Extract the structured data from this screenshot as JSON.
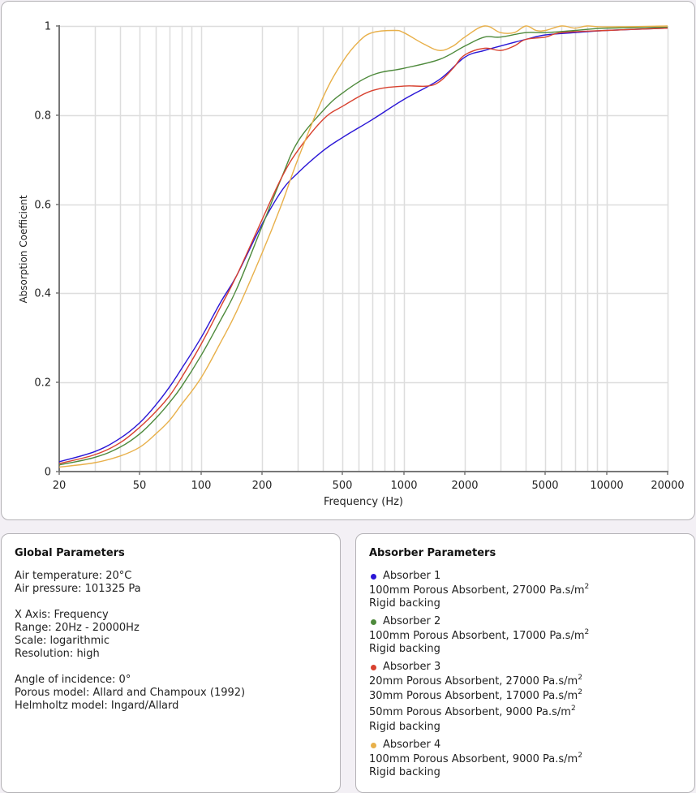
{
  "chart_data": {
    "type": "line",
    "title": "",
    "xlabel": "Frequency (Hz)",
    "ylabel": "Absorption Coefficient",
    "xscale": "log",
    "xlim": [
      20,
      20000
    ],
    "ylim": [
      0,
      1
    ],
    "grid": true,
    "legend": "none",
    "xticks": [
      20,
      50,
      100,
      200,
      500,
      1000,
      2000,
      5000,
      10000,
      20000
    ],
    "xtick_labels": [
      "20",
      "50",
      "100",
      "200",
      "500",
      "1000",
      "2000",
      "5000",
      "10000",
      "20000"
    ],
    "xgrid_minor": [
      30,
      40,
      60,
      70,
      80,
      90,
      300,
      400,
      600,
      700,
      800,
      900,
      3000,
      4000,
      6000,
      7000,
      8000,
      9000
    ],
    "yticks": [
      0,
      0.2,
      0.4,
      0.6,
      0.8,
      1
    ],
    "ytick_labels": [
      "0",
      "0.2",
      "0.4",
      "0.6",
      "0.8",
      "1"
    ],
    "series": [
      {
        "name": "Absorber 1",
        "color": "#2a16d6",
        "x": [
          20,
          30,
          40,
          50,
          60,
          70,
          80,
          100,
          125,
          150,
          200,
          250,
          300,
          400,
          500,
          700,
          1000,
          1500,
          2000,
          2500,
          3000,
          4000,
          5000,
          7000,
          10000,
          20000
        ],
        "y": [
          0.022,
          0.045,
          0.075,
          0.11,
          0.15,
          0.19,
          0.23,
          0.3,
          0.38,
          0.44,
          0.555,
          0.63,
          0.67,
          0.72,
          0.75,
          0.79,
          0.835,
          0.88,
          0.93,
          0.945,
          0.955,
          0.97,
          0.98,
          0.985,
          0.99,
          0.995
        ]
      },
      {
        "name": "Absorber 2",
        "color": "#4e8a3c",
        "x": [
          20,
          30,
          40,
          50,
          60,
          70,
          80,
          100,
          125,
          150,
          200,
          250,
          300,
          400,
          500,
          700,
          1000,
          1500,
          2000,
          2500,
          3000,
          4000,
          5000,
          7000,
          10000,
          20000
        ],
        "y": [
          0.015,
          0.032,
          0.055,
          0.085,
          0.12,
          0.155,
          0.19,
          0.26,
          0.34,
          0.41,
          0.55,
          0.66,
          0.74,
          0.81,
          0.85,
          0.89,
          0.905,
          0.925,
          0.955,
          0.975,
          0.975,
          0.985,
          0.985,
          0.99,
          0.995,
          0.997
        ]
      },
      {
        "name": "Absorber 3",
        "color": "#d8412f",
        "x": [
          20,
          30,
          40,
          50,
          60,
          70,
          80,
          100,
          125,
          150,
          200,
          250,
          300,
          400,
          500,
          700,
          1000,
          1300,
          1500,
          1750,
          2000,
          2500,
          3000,
          3500,
          4000,
          5000,
          6000,
          10000,
          20000
        ],
        "y": [
          0.018,
          0.038,
          0.065,
          0.1,
          0.135,
          0.17,
          0.21,
          0.285,
          0.37,
          0.44,
          0.565,
          0.66,
          0.72,
          0.79,
          0.82,
          0.855,
          0.865,
          0.865,
          0.875,
          0.905,
          0.935,
          0.95,
          0.945,
          0.955,
          0.97,
          0.975,
          0.985,
          0.99,
          0.995
        ]
      },
      {
        "name": "Absorber 4",
        "color": "#e8b04a",
        "x": [
          20,
          30,
          40,
          50,
          60,
          70,
          80,
          100,
          125,
          150,
          200,
          250,
          300,
          400,
          500,
          600,
          700,
          900,
          1000,
          1250,
          1500,
          1750,
          2000,
          2500,
          3000,
          3500,
          4000,
          4500,
          5000,
          6000,
          7000,
          8000,
          10000,
          20000
        ],
        "y": [
          0.01,
          0.02,
          0.035,
          0.055,
          0.085,
          0.115,
          0.15,
          0.21,
          0.29,
          0.36,
          0.49,
          0.6,
          0.7,
          0.84,
          0.92,
          0.965,
          0.985,
          0.99,
          0.985,
          0.96,
          0.945,
          0.955,
          0.975,
          1.0,
          0.985,
          0.985,
          1.0,
          0.99,
          0.99,
          1.0,
          0.995,
          1.0,
          0.998,
          1.0
        ]
      }
    ]
  },
  "global_params": {
    "title": "Global Parameters",
    "air_temperature": "Air temperature: 20°C",
    "air_pressure": "Air pressure: 101325 Pa",
    "x_axis": "X Axis: Frequency",
    "range": "Range: 20Hz - 20000Hz",
    "scale": "Scale: logarithmic",
    "resolution": "Resolution: high",
    "angle": "Angle of incidence: 0°",
    "porous_model": "Porous model: Allard and Champoux (1992)",
    "helmholtz_model": "Helmholtz model: Ingard/Allard"
  },
  "absorber_params": {
    "title": "Absorber Parameters",
    "unit_suffix": "2",
    "absorbers": [
      {
        "name": "Absorber 1",
        "color": "#2a16d6",
        "layers": [
          "100mm Porous Absorbent, 27000 Pa.s/m"
        ],
        "backing": "Rigid backing"
      },
      {
        "name": "Absorber 2",
        "color": "#4e8a3c",
        "layers": [
          "100mm Porous Absorbent, 17000 Pa.s/m"
        ],
        "backing": "Rigid backing"
      },
      {
        "name": "Absorber 3",
        "color": "#d8412f",
        "layers": [
          "20mm Porous Absorbent, 27000 Pa.s/m",
          "30mm Porous Absorbent, 17000 Pa.s/m",
          "50mm Porous Absorbent, 9000 Pa.s/m"
        ],
        "backing": "Rigid backing"
      },
      {
        "name": "Absorber 4",
        "color": "#e8b04a",
        "layers": [
          "100mm Porous Absorbent, 9000 Pa.s/m"
        ],
        "backing": "Rigid backing"
      }
    ]
  }
}
